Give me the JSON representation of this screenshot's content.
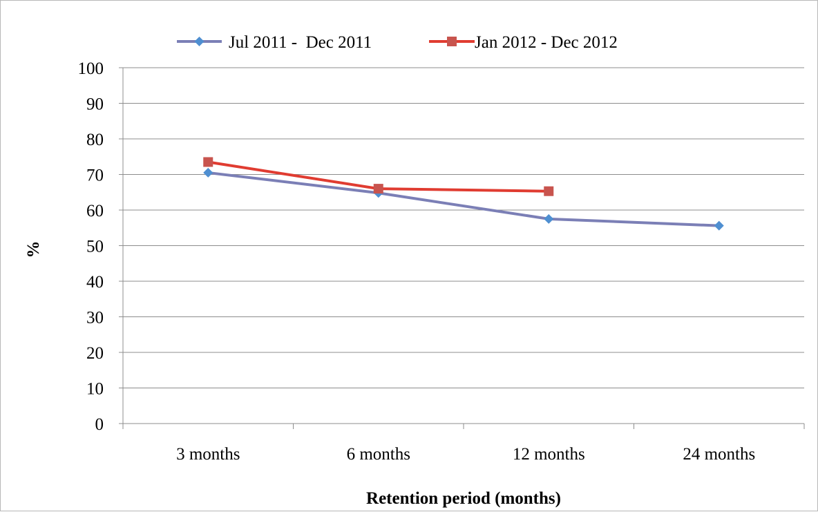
{
  "chart_data": {
    "type": "line",
    "title": "",
    "xlabel": "Retention period (months)",
    "ylabel": "%",
    "categories": [
      "3 months",
      "6 months",
      "12 months",
      "24 months"
    ],
    "ylim": [
      0,
      100
    ],
    "yticks": [
      0,
      10,
      20,
      30,
      40,
      50,
      60,
      70,
      80,
      90,
      100
    ],
    "grid": true,
    "legend_position": "top",
    "series": [
      {
        "name": "Jul 2011 -  Dec 2011",
        "values": [
          70.5,
          64.8,
          57.5,
          55.6
        ],
        "color": "#7b7fb6",
        "marker": "diamond",
        "marker_color": "#4f8fd1"
      },
      {
        "name": "Jan 2012 - Dec 2012",
        "values": [
          73.5,
          66.0,
          65.3,
          null
        ],
        "color": "#e03c31",
        "marker": "square",
        "marker_color": "#c8544e"
      }
    ]
  }
}
